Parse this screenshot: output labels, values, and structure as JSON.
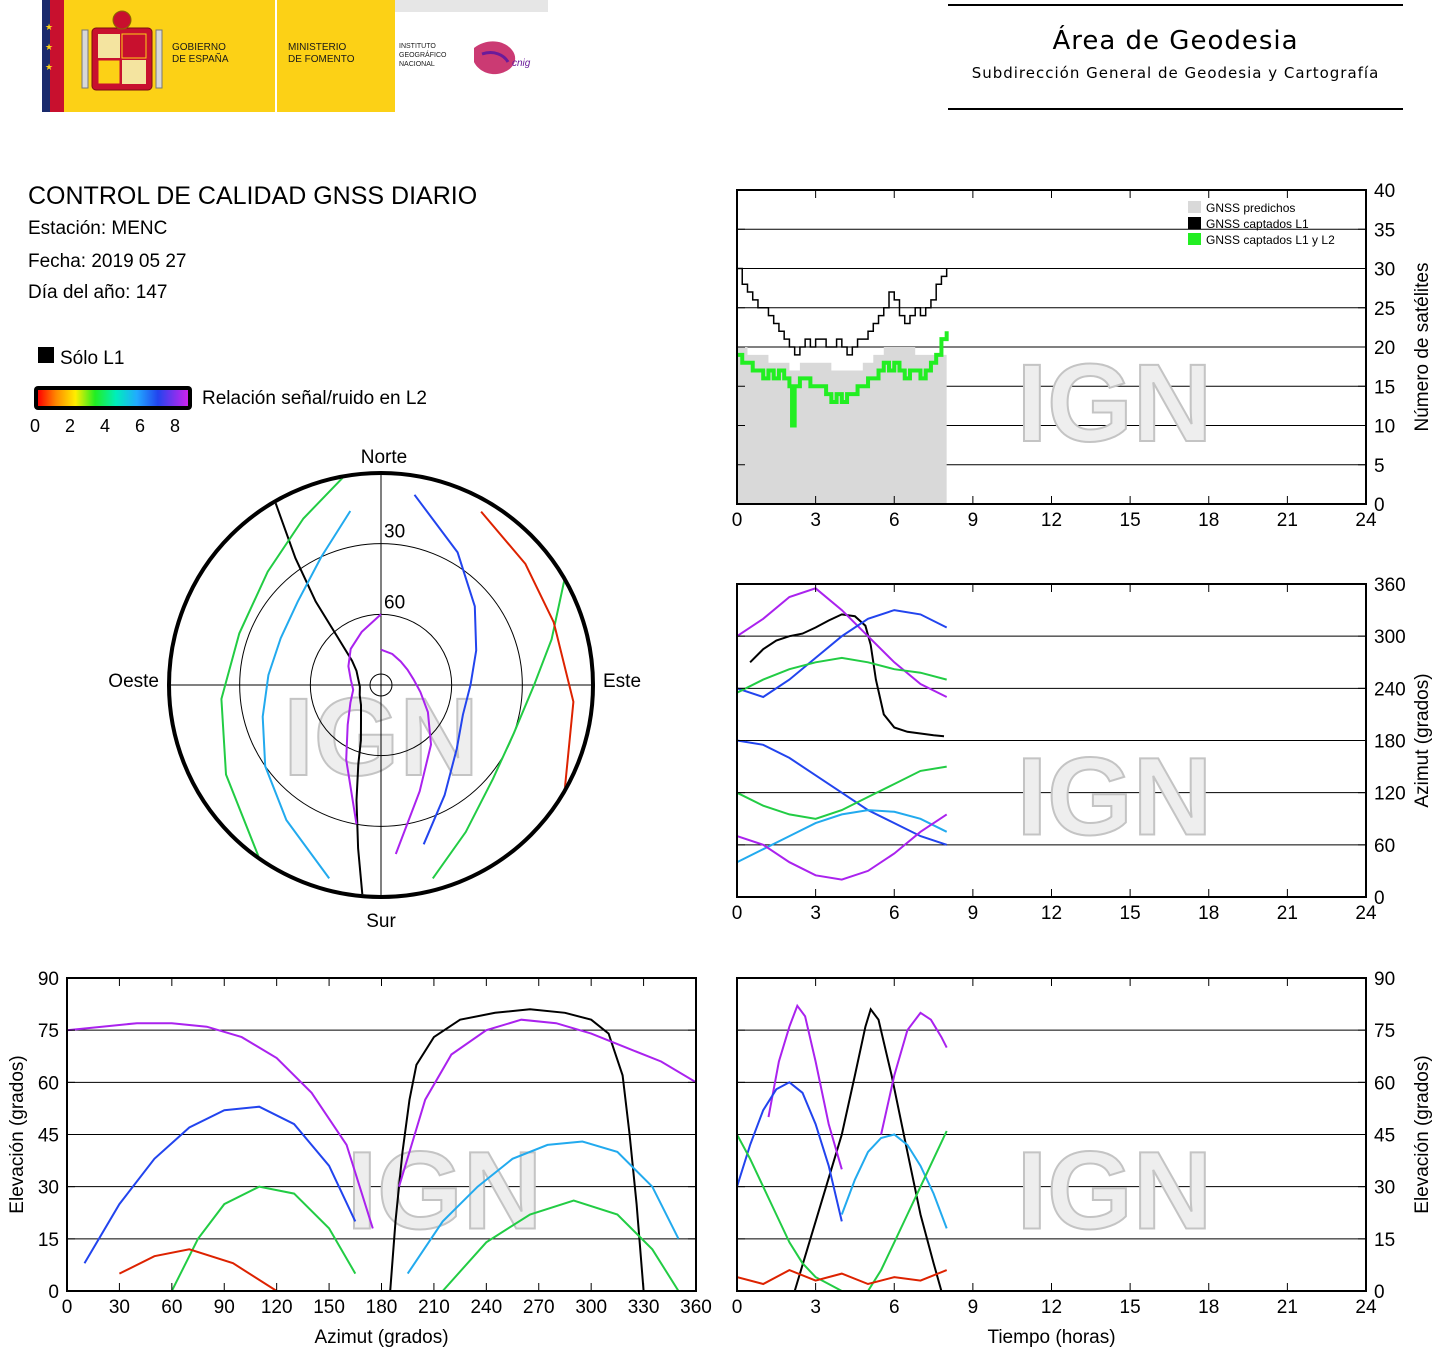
{
  "header": {
    "gov_line1": "GOBIERNO",
    "gov_line2": "DE ESPAÑA",
    "min_line1": "MINISTERIO",
    "min_line2": "DE FOMENTO",
    "ign_line1": "INSTITUTO",
    "ign_line2": "GEOGRÁFICO",
    "ign_line3": "NACIONAL",
    "cnig": "cnig",
    "area_title": "Área de Geodesia",
    "area_subtitle": "Subdirección General de Geodesia y Cartografía",
    "colors": {
      "flag_red": "#c8102e",
      "flag_yellow": "#fcd116",
      "ministry_yellow": "#fcd116",
      "navy": "#1a2a6c"
    }
  },
  "report": {
    "title": "CONTROL DE CALIDAD GNSS DIARIO",
    "station": "Estación: MENC",
    "date": "Fecha: 2019 05 27",
    "doy": "Día del año: 147"
  },
  "legend": {
    "only_l1": "Sólo L1",
    "snr_label": "Relación señal/ruido en L2",
    "snr_ticks": [
      "0",
      "2",
      "4",
      "6",
      "8"
    ]
  },
  "watermark": "IGN",
  "chart_data": [
    {
      "id": "polar_skyplot",
      "type": "scatter",
      "title": "",
      "directions": {
        "north": "Norte",
        "south": "Sur",
        "east": "Este",
        "west": "Oeste"
      },
      "ring_labels": [
        "30",
        "60"
      ],
      "rings_elevation": [
        0,
        30,
        60,
        90
      ],
      "color_scale": "SNR L2 0-8 (red→orange→yellow→green→cyan→blue→purple)"
    },
    {
      "id": "satellite_count",
      "type": "line",
      "xlabel": "",
      "ylabel": "Número de satélites",
      "xlim": [
        0,
        24
      ],
      "ylim": [
        0,
        40
      ],
      "xticks": [
        "0",
        "3",
        "6",
        "9",
        "12",
        "15",
        "18",
        "21",
        "24"
      ],
      "yticks": [
        "0",
        "5",
        "10",
        "15",
        "20",
        "25",
        "30",
        "35",
        "40"
      ],
      "grid": true,
      "legend_position": "top-right",
      "series": [
        {
          "name": "GNSS predichos",
          "color": "#d9d9d9",
          "x": [
            0,
            0.4,
            0.8,
            1.2,
            1.6,
            2.0,
            2.4,
            2.8,
            3.2,
            3.6,
            4.0,
            4.4,
            4.8,
            5.2,
            5.6,
            6.0,
            6.4,
            6.8,
            7.2,
            7.6,
            8.0
          ],
          "y": [
            20,
            19,
            19,
            18,
            18,
            17,
            18,
            18,
            18,
            17,
            17,
            17,
            18,
            19,
            20,
            20,
            20,
            19,
            19,
            19,
            21
          ]
        },
        {
          "name": "GNSS captados L1",
          "color": "#000000",
          "x": [
            0,
            0.2,
            0.4,
            0.6,
            0.8,
            1.0,
            1.2,
            1.4,
            1.6,
            1.8,
            2.0,
            2.2,
            2.4,
            2.6,
            2.8,
            3.0,
            3.2,
            3.4,
            3.6,
            3.8,
            4.0,
            4.2,
            4.4,
            4.6,
            4.8,
            5.0,
            5.2,
            5.4,
            5.6,
            5.8,
            6.0,
            6.2,
            6.4,
            6.6,
            6.8,
            7.0,
            7.2,
            7.4,
            7.6,
            7.8,
            8.0
          ],
          "y": [
            30,
            28,
            27,
            26,
            25,
            25,
            24,
            23,
            22,
            21,
            20,
            19,
            20,
            21,
            20,
            21,
            21,
            20,
            20,
            21,
            20,
            19,
            20,
            21,
            21,
            22,
            23,
            24,
            25,
            27,
            26,
            24,
            23,
            24,
            25,
            24,
            25,
            26,
            28,
            29,
            30
          ]
        },
        {
          "name": "GNSS captados L1 y L2",
          "color": "#22ee22",
          "x": [
            0,
            0.2,
            0.4,
            0.6,
            0.8,
            1.0,
            1.2,
            1.4,
            1.6,
            1.8,
            2.0,
            2.1,
            2.2,
            2.4,
            2.6,
            2.8,
            3.0,
            3.2,
            3.4,
            3.6,
            3.8,
            4.0,
            4.2,
            4.4,
            4.6,
            4.8,
            5.0,
            5.2,
            5.4,
            5.6,
            5.8,
            6.0,
            6.2,
            6.4,
            6.6,
            6.8,
            7.0,
            7.2,
            7.4,
            7.6,
            7.8,
            8.0
          ],
          "y": [
            19,
            18,
            18,
            17,
            17,
            16,
            17,
            16,
            17,
            16,
            15,
            10,
            15,
            16,
            16,
            15,
            15,
            15,
            14,
            13,
            14,
            13,
            14,
            14,
            15,
            15,
            16,
            16,
            17,
            18,
            17,
            18,
            17,
            16,
            17,
            17,
            16,
            17,
            18,
            19,
            21,
            22
          ]
        }
      ]
    },
    {
      "id": "azimuth_time",
      "type": "line",
      "xlabel": "",
      "ylabel": "Azimut (grados)",
      "xlim": [
        0,
        24
      ],
      "ylim": [
        0,
        360
      ],
      "xticks": [
        "0",
        "3",
        "6",
        "9",
        "12",
        "15",
        "18",
        "21",
        "24"
      ],
      "yticks": [
        "0",
        "60",
        "120",
        "180",
        "240",
        "300",
        "360"
      ],
      "grid": true,
      "series": [
        {
          "color": "#000000",
          "x": [
            0.5,
            1.0,
            1.5,
            2.0,
            2.5,
            3.0,
            3.5,
            4.0,
            4.5,
            4.9,
            5.1,
            5.3,
            5.6,
            6.0,
            6.5,
            7.0,
            7.5,
            7.9
          ],
          "y": [
            270,
            285,
            295,
            300,
            303,
            310,
            318,
            325,
            323,
            312,
            290,
            250,
            210,
            195,
            190,
            188,
            186,
            185
          ]
        },
        {
          "color": "#aa22ee",
          "x": [
            0,
            1,
            2,
            3,
            4,
            5,
            6,
            7,
            8
          ],
          "y": [
            300,
            320,
            345,
            355,
            330,
            300,
            270,
            245,
            230
          ]
        },
        {
          "color": "#2244ee",
          "x": [
            0,
            1,
            2,
            3,
            4,
            5,
            6,
            7,
            8
          ],
          "y": [
            180,
            175,
            160,
            140,
            120,
            100,
            85,
            70,
            60
          ]
        },
        {
          "color": "#22cc44",
          "x": [
            0,
            1,
            2,
            3,
            4,
            5,
            6,
            7,
            8
          ],
          "y": [
            120,
            105,
            95,
            90,
            100,
            115,
            130,
            145,
            150
          ]
        },
        {
          "color": "#22aaee",
          "x": [
            0,
            1,
            2,
            3,
            4,
            5,
            6,
            7,
            8
          ],
          "y": [
            40,
            55,
            70,
            85,
            95,
            100,
            98,
            90,
            75
          ]
        },
        {
          "color": "#aa22ee",
          "x": [
            0,
            1,
            2,
            3,
            4,
            5,
            6,
            7,
            8
          ],
          "y": [
            70,
            60,
            40,
            25,
            20,
            30,
            50,
            75,
            95
          ]
        },
        {
          "color": "#2244ee",
          "x": [
            0,
            1,
            2,
            3,
            4,
            5,
            6,
            7,
            8
          ],
          "y": [
            240,
            230,
            250,
            275,
            300,
            320,
            330,
            325,
            310
          ]
        },
        {
          "color": "#22cc44",
          "x": [
            0,
            1,
            2,
            3,
            4,
            5,
            6,
            7,
            8
          ],
          "y": [
            235,
            250,
            262,
            270,
            275,
            270,
            262,
            258,
            250
          ]
        }
      ]
    },
    {
      "id": "elevation_azimuth",
      "type": "line",
      "xlabel": "Azimut (grados)",
      "ylabel": "Elevación (grados)",
      "xlim": [
        0,
        360
      ],
      "ylim": [
        0,
        90
      ],
      "xticks": [
        "0",
        "30",
        "60",
        "90",
        "120",
        "150",
        "180",
        "210",
        "240",
        "270",
        "300",
        "330",
        "360"
      ],
      "yticks": [
        "0",
        "15",
        "30",
        "45",
        "60",
        "75",
        "90"
      ],
      "grid": true,
      "series": [
        {
          "color": "#000000",
          "x": [
            185,
            188,
            192,
            196,
            200,
            210,
            225,
            245,
            265,
            285,
            300,
            310,
            318,
            322,
            326,
            330
          ],
          "y": [
            0,
            20,
            40,
            55,
            65,
            73,
            78,
            80,
            81,
            80,
            78,
            74,
            62,
            45,
            25,
            0
          ]
        },
        {
          "color": "#aa22ee",
          "x": [
            0,
            20,
            40,
            60,
            80,
            100,
            120,
            140,
            160,
            175
          ],
          "y": [
            75,
            76,
            77,
            77,
            76,
            73,
            67,
            57,
            42,
            18
          ]
        },
        {
          "color": "#aa22ee",
          "x": [
            190,
            205,
            220,
            240,
            260,
            280,
            300,
            320,
            340,
            360
          ],
          "y": [
            30,
            55,
            68,
            75,
            78,
            77,
            74,
            70,
            66,
            60
          ]
        },
        {
          "color": "#2244ee",
          "x": [
            10,
            30,
            50,
            70,
            90,
            110,
            130,
            150,
            165
          ],
          "y": [
            8,
            25,
            38,
            47,
            52,
            53,
            48,
            36,
            20
          ]
        },
        {
          "color": "#22aaee",
          "x": [
            195,
            215,
            235,
            255,
            275,
            295,
            315,
            335,
            350
          ],
          "y": [
            5,
            20,
            30,
            38,
            42,
            43,
            40,
            30,
            15
          ]
        },
        {
          "color": "#22cc44",
          "x": [
            60,
            75,
            90,
            110,
            130,
            150,
            165
          ],
          "y": [
            0,
            15,
            25,
            30,
            28,
            18,
            5
          ]
        },
        {
          "color": "#22cc44",
          "x": [
            215,
            240,
            265,
            290,
            315,
            335,
            350
          ],
          "y": [
            0,
            14,
            22,
            26,
            22,
            12,
            0
          ]
        },
        {
          "color": "#dd2200",
          "x": [
            30,
            50,
            70,
            95,
            120
          ],
          "y": [
            5,
            10,
            12,
            8,
            0
          ]
        }
      ]
    },
    {
      "id": "elevation_time",
      "type": "line",
      "xlabel": "Tiempo (horas)",
      "ylabel": "Elevación (grados)",
      "xlim": [
        0,
        24
      ],
      "ylim": [
        0,
        90
      ],
      "xticks": [
        "0",
        "3",
        "6",
        "9",
        "12",
        "15",
        "18",
        "21",
        "24"
      ],
      "yticks": [
        "0",
        "15",
        "30",
        "45",
        "60",
        "75",
        "90"
      ],
      "grid": true,
      "series": [
        {
          "color": "#000000",
          "x": [
            2.2,
            2.8,
            3.4,
            4.0,
            4.5,
            4.9,
            5.1,
            5.4,
            5.9,
            6.5,
            7.0,
            7.5,
            7.8
          ],
          "y": [
            0,
            15,
            30,
            45,
            62,
            76,
            81,
            78,
            62,
            40,
            22,
            8,
            0
          ]
        },
        {
          "color": "#aa22ee",
          "x": [
            1.2,
            1.6,
            2.0,
            2.3,
            2.6,
            3.0,
            3.5,
            4.0
          ],
          "y": [
            50,
            66,
            76,
            82,
            79,
            66,
            48,
            35
          ]
        },
        {
          "color": "#aa22ee",
          "x": [
            5.5,
            6.0,
            6.5,
            7.0,
            7.4,
            7.8,
            8.0
          ],
          "y": [
            45,
            62,
            75,
            80,
            78,
            73,
            70
          ]
        },
        {
          "color": "#2244ee",
          "x": [
            0,
            0.5,
            1,
            1.5,
            2,
            2.5,
            3,
            3.5,
            4
          ],
          "y": [
            30,
            42,
            52,
            58,
            60,
            57,
            48,
            36,
            20
          ]
        },
        {
          "color": "#22aaee",
          "x": [
            4,
            4.5,
            5,
            5.5,
            6,
            6.5,
            7,
            7.5,
            8
          ],
          "y": [
            22,
            32,
            40,
            44,
            45,
            42,
            36,
            28,
            18
          ]
        },
        {
          "color": "#22cc44",
          "x": [
            0,
            0.5,
            1,
            1.5,
            2,
            2.5,
            3,
            3.5,
            4
          ],
          "y": [
            45,
            38,
            30,
            22,
            14,
            8,
            4,
            2,
            0
          ]
        },
        {
          "color": "#22cc44",
          "x": [
            5,
            5.5,
            6,
            6.5,
            7,
            7.5,
            8
          ],
          "y": [
            0,
            6,
            14,
            22,
            30,
            38,
            46
          ]
        },
        {
          "color": "#dd2200",
          "x": [
            0,
            1,
            2,
            3,
            4,
            5,
            6,
            7,
            8
          ],
          "y": [
            4,
            2,
            6,
            3,
            5,
            2,
            4,
            3,
            6
          ]
        }
      ]
    }
  ]
}
